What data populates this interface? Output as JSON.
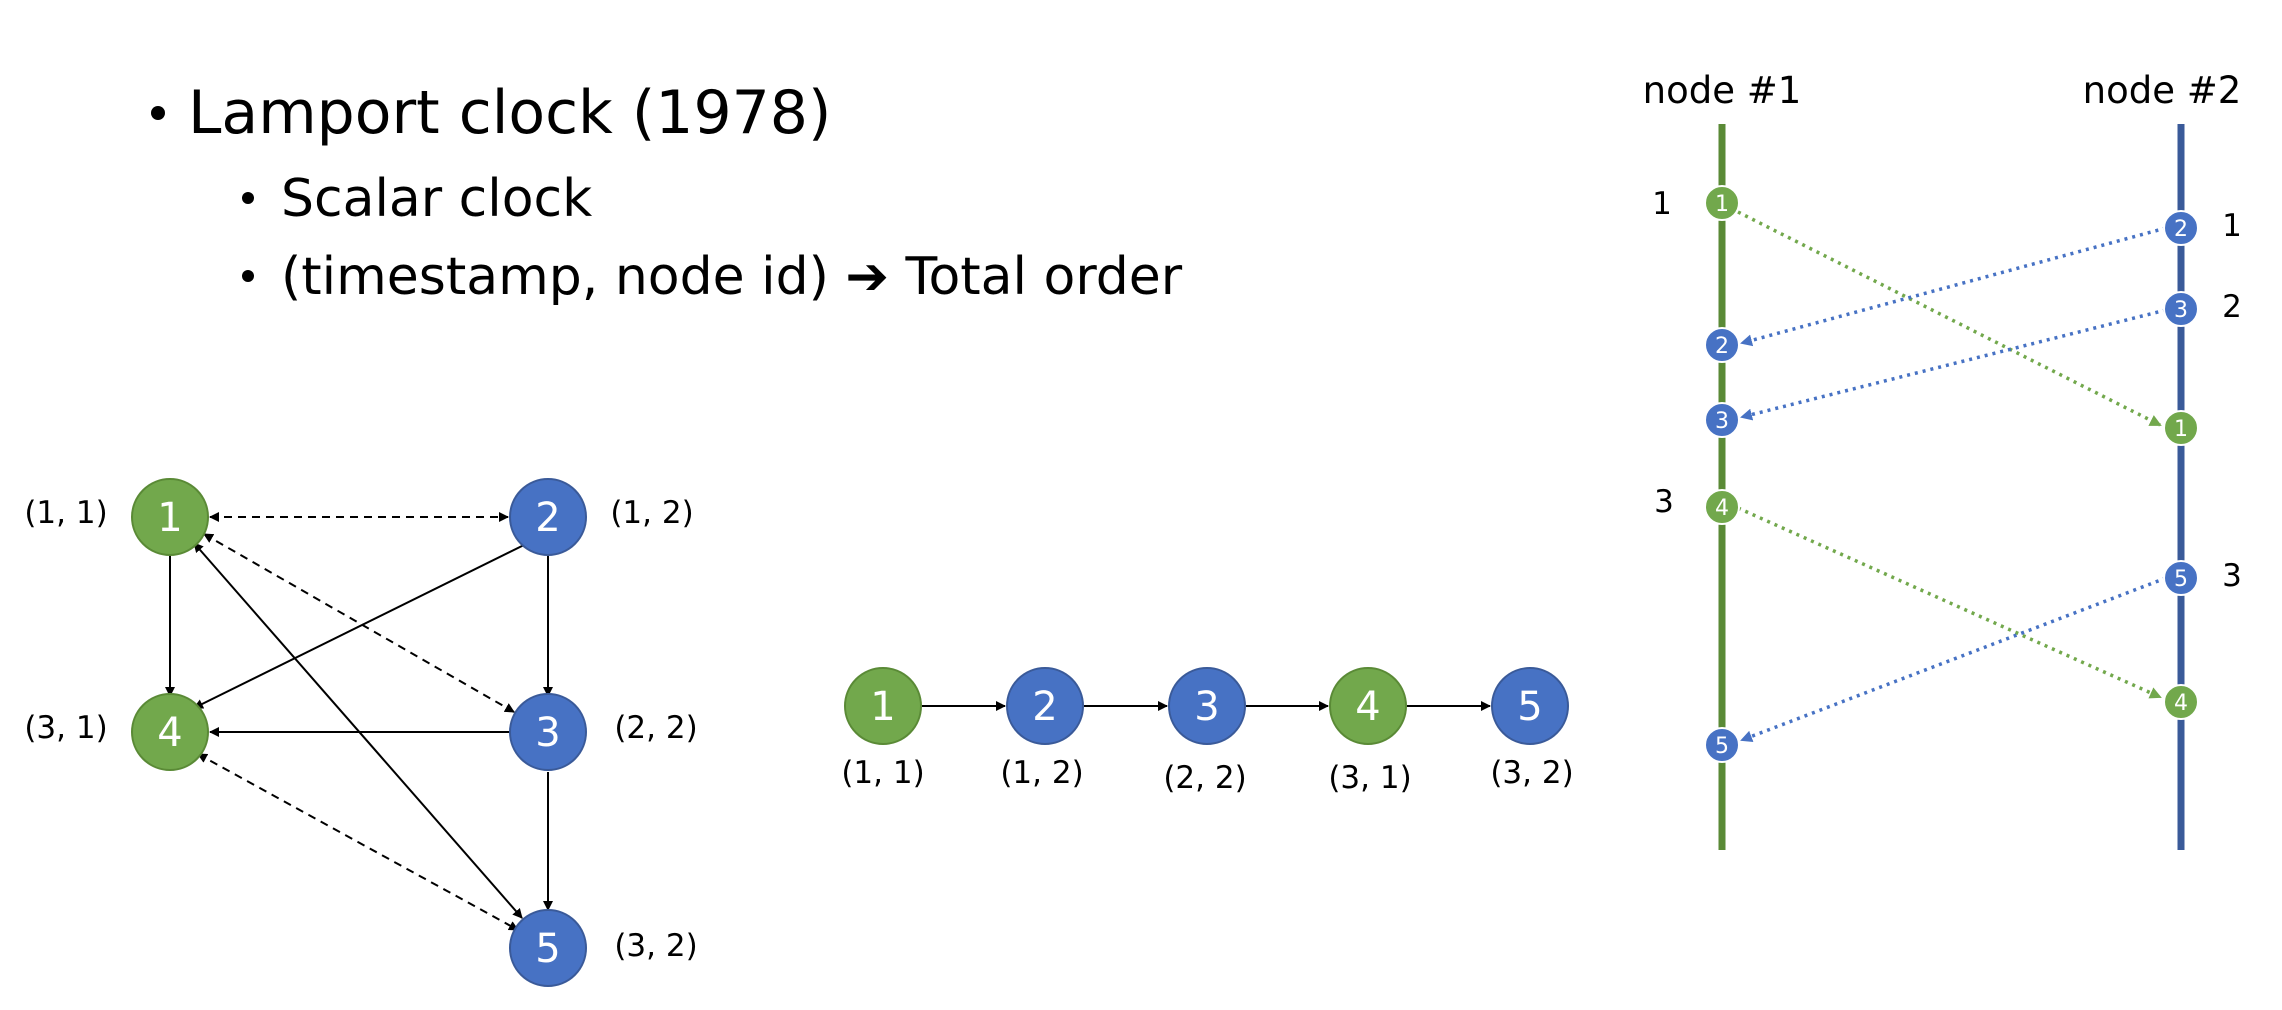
{
  "bullets": {
    "main": "Lamport clock (1978)",
    "sub1": "Scalar clock",
    "sub2_before": "(timestamp, node id)",
    "sub2_arrow": "➔",
    "sub2_after": "Total order"
  },
  "colors": {
    "green": "#72a84c",
    "blue": "#4772c4",
    "green_line": "#5a8a36",
    "blue_line": "#3a5a99",
    "arrow": "#000000"
  },
  "graph": {
    "nodes": [
      {
        "id": "1",
        "label": "(1, 1)",
        "color": "green"
      },
      {
        "id": "2",
        "label": "(1, 2)",
        "color": "blue"
      },
      {
        "id": "3",
        "label": "(2, 2)",
        "color": "blue"
      },
      {
        "id": "4",
        "label": "(3, 1)",
        "color": "green"
      },
      {
        "id": "5",
        "label": "(3, 2)",
        "color": "blue"
      }
    ]
  },
  "chain": {
    "nodes": [
      {
        "id": "1",
        "label": "(1, 1)",
        "color": "green"
      },
      {
        "id": "2",
        "label": "(1, 2)",
        "color": "blue"
      },
      {
        "id": "3",
        "label": "(2, 2)",
        "color": "blue"
      },
      {
        "id": "4",
        "label": "(3, 1)",
        "color": "green"
      },
      {
        "id": "5",
        "label": "(3, 2)",
        "color": "blue"
      }
    ]
  },
  "timeline": {
    "node1_header": "node #1",
    "node2_header": "node #2",
    "node1_events": [
      {
        "id": "1",
        "color": "green",
        "clock": "1"
      },
      {
        "id": "2",
        "color": "blue",
        "clock": ""
      },
      {
        "id": "3",
        "color": "blue",
        "clock": ""
      },
      {
        "id": "4",
        "color": "green",
        "clock": "3"
      },
      {
        "id": "5",
        "color": "blue",
        "clock": ""
      }
    ],
    "node2_events": [
      {
        "id": "2",
        "color": "blue",
        "clock": "1"
      },
      {
        "id": "3",
        "color": "blue",
        "clock": "2"
      },
      {
        "id": "1",
        "color": "green",
        "clock": ""
      },
      {
        "id": "5",
        "color": "blue",
        "clock": "3"
      },
      {
        "id": "4",
        "color": "green",
        "clock": ""
      }
    ]
  }
}
